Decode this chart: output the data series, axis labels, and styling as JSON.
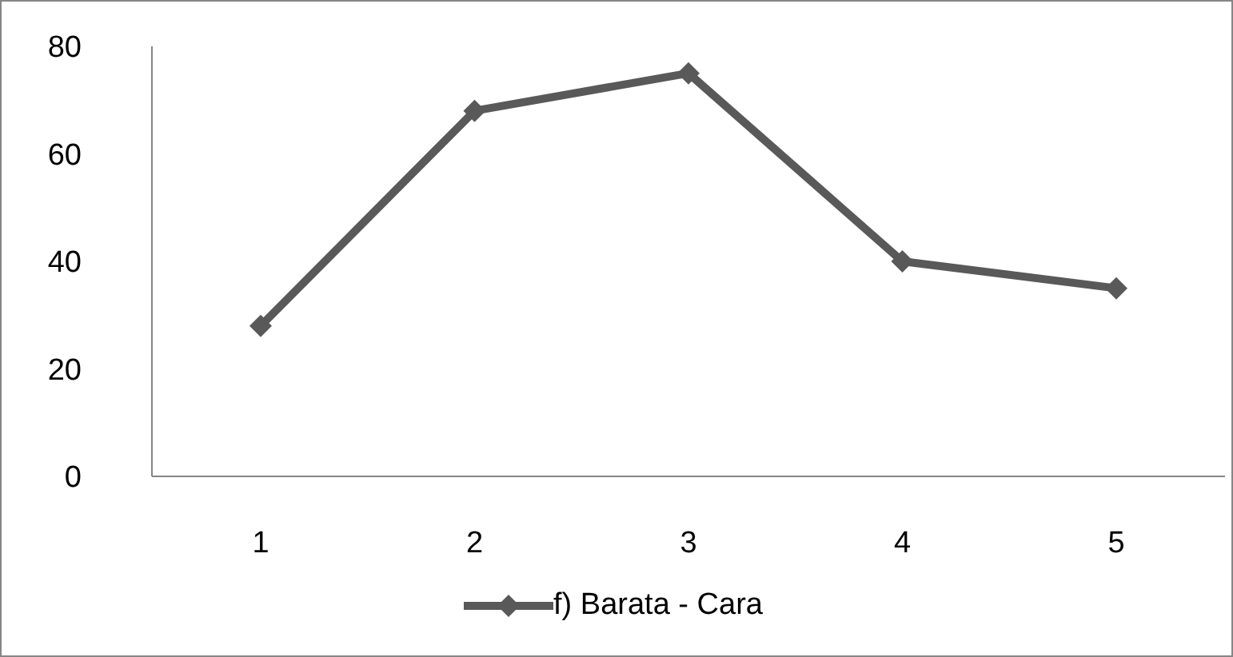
{
  "chart_data": {
    "type": "line",
    "categories": [
      "1",
      "2",
      "3",
      "4",
      "5"
    ],
    "series": [
      {
        "name": "f) Barata - Cara",
        "color": "#595959",
        "values": [
          28,
          68,
          75,
          40,
          35
        ]
      }
    ],
    "ylim": [
      0,
      80
    ],
    "yticks": [
      0,
      20,
      40,
      60,
      80
    ],
    "grid": false,
    "legend": "bottom",
    "marker": "diamond",
    "line_style": "solid"
  }
}
